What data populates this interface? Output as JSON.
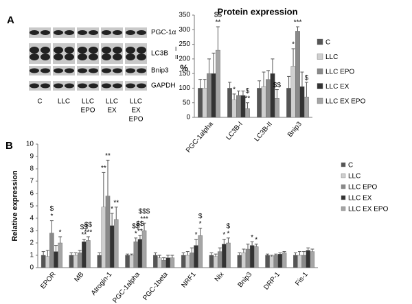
{
  "blot": {
    "panel_label": "A",
    "rows": [
      "PGC-1α",
      "LC3B",
      "Bnip3",
      "GAPDH"
    ],
    "lc3b_bands": [
      "I",
      "II"
    ],
    "lanes": [
      [
        "C"
      ],
      [
        "LLC"
      ],
      [
        "LLC",
        "EPO"
      ],
      [
        "LLC",
        "EX"
      ],
      [
        "LLC",
        "EX",
        "EPO"
      ]
    ]
  },
  "chart_data": [
    {
      "type": "bar",
      "title": "Protein expression",
      "ylabel": "%",
      "categories": [
        "PGC-1alpha",
        "LC3B-I",
        "LC3B-II",
        "Bnip3"
      ],
      "ylim": [
        0,
        350
      ],
      "yticks": [
        0,
        50,
        100,
        150,
        200,
        250,
        300,
        350
      ],
      "grid": false,
      "legend": "right",
      "series": [
        {
          "name": "C",
          "color": "#555555",
          "values": [
            100,
            100,
            100,
            100
          ],
          "errors": [
            30,
            20,
            25,
            40
          ],
          "annotations": [
            null,
            null,
            null,
            null
          ]
        },
        {
          "name": "LLC",
          "color": "#cfcfcf",
          "values": [
            100,
            60,
            105,
            175
          ],
          "errors": [
            30,
            20,
            50,
            60
          ],
          "annotations": [
            null,
            [
              "*"
            ],
            null,
            [
              "*"
            ]
          ]
        },
        {
          "name": "LLC EPO",
          "color": "#8a8a8a",
          "values": [
            150,
            75,
            130,
            295
          ],
          "errors": [
            50,
            15,
            30,
            15
          ],
          "annotations": [
            null,
            null,
            null,
            [
              "***"
            ]
          ]
        },
        {
          "name": "LLC EX",
          "color": "#333333",
          "values": [
            150,
            75,
            150,
            105
          ],
          "errors": [
            70,
            15,
            50,
            50
          ],
          "annotations": [
            null,
            null,
            null,
            null
          ]
        },
        {
          "name": "LLC EX EPO",
          "color": "#a5a5a5",
          "values": [
            230,
            30,
            65,
            70
          ],
          "errors": [
            80,
            20,
            30,
            50
          ],
          "annotations": [
            [
              "$$",
              "**"
            ],
            [
              "$",
              "**"
            ],
            [
              "$$"
            ],
            [
              "$"
            ]
          ]
        }
      ]
    },
    {
      "type": "bar",
      "panel_label": "B",
      "ylabel": "Relative expression",
      "categories": [
        "EPOR",
        "MB",
        "Atrogin-1",
        "PGC-1alpha",
        "PGC-1beta",
        "NRF1",
        "Nix",
        "Bnip3",
        "DRP-1",
        "Fis-1"
      ],
      "ylim": [
        0,
        10
      ],
      "yticks": [
        0,
        1,
        2,
        3,
        4,
        5,
        6,
        7,
        8,
        9,
        10
      ],
      "grid": false,
      "legend": "right",
      "series": [
        {
          "name": "C",
          "color": "#555555",
          "values": [
            1,
            1,
            1,
            1,
            1,
            1,
            1,
            1,
            1,
            1
          ],
          "errors": [
            0.3,
            0.2,
            0.2,
            0.1,
            0.2,
            0.2,
            0.2,
            0.2,
            0.1,
            0.2
          ],
          "annotations": [
            null,
            null,
            null,
            null,
            null,
            null,
            null,
            null,
            null,
            null
          ]
        },
        {
          "name": "LLC",
          "color": "#cfcfcf",
          "values": [
            0.9,
            1.0,
            4.9,
            1.0,
            0.8,
            1.0,
            0.9,
            1.2,
            0.9,
            1.0
          ],
          "errors": [
            0.5,
            0.2,
            2.8,
            0.1,
            0.2,
            0.3,
            0.2,
            0.3,
            0.1,
            0.3
          ],
          "annotations": [
            null,
            null,
            [
              "**"
            ],
            null,
            null,
            null,
            null,
            null,
            null,
            null
          ]
        },
        {
          "name": "LLC EPO",
          "color": "#8a8a8a",
          "values": [
            2.8,
            1.2,
            5.8,
            2.1,
            0.6,
            1.2,
            1.3,
            1.5,
            1.0,
            1.0
          ],
          "errors": [
            1.0,
            0.2,
            2.9,
            0.3,
            0.2,
            0.4,
            0.3,
            0.4,
            0.1,
            0.3
          ],
          "annotations": [
            [
              "$",
              "*"
            ],
            null,
            [
              "**"
            ],
            [
              "$$",
              "*"
            ],
            null,
            null,
            null,
            null,
            null,
            null
          ]
        },
        {
          "name": "LLC EX",
          "color": "#333333",
          "values": [
            1.3,
            2.1,
            3.4,
            2.3,
            0.8,
            1.8,
            1.9,
            1.8,
            1.1,
            1.4
          ],
          "errors": [
            0.5,
            0.2,
            1.0,
            0.3,
            0.2,
            0.5,
            0.4,
            0.3,
            0.1,
            0.2
          ],
          "annotations": [
            null,
            [
              "$$",
              "**"
            ],
            [
              "*"
            ],
            [
              "$$",
              "**"
            ],
            null,
            [
              "*"
            ],
            [
              "*"
            ],
            [
              "*"
            ],
            null,
            null
          ]
        },
        {
          "name": "LLC EX EPO",
          "color": "#a5a5a5",
          "values": [
            2.0,
            2.2,
            3.9,
            3.0,
            0.8,
            2.6,
            2.0,
            1.7,
            1.2,
            1.3
          ],
          "errors": [
            0.5,
            0.3,
            1.0,
            0.6,
            0.2,
            0.6,
            0.4,
            0.2,
            0.1,
            0.2
          ],
          "annotations": [
            [
              "*"
            ],
            [
              "$$",
              "***"
            ],
            [
              "**"
            ],
            [
              "$$$",
              "***"
            ],
            null,
            [
              "$",
              "*"
            ],
            [
              "$",
              "*"
            ],
            [
              "*"
            ],
            null,
            null
          ]
        }
      ]
    }
  ]
}
